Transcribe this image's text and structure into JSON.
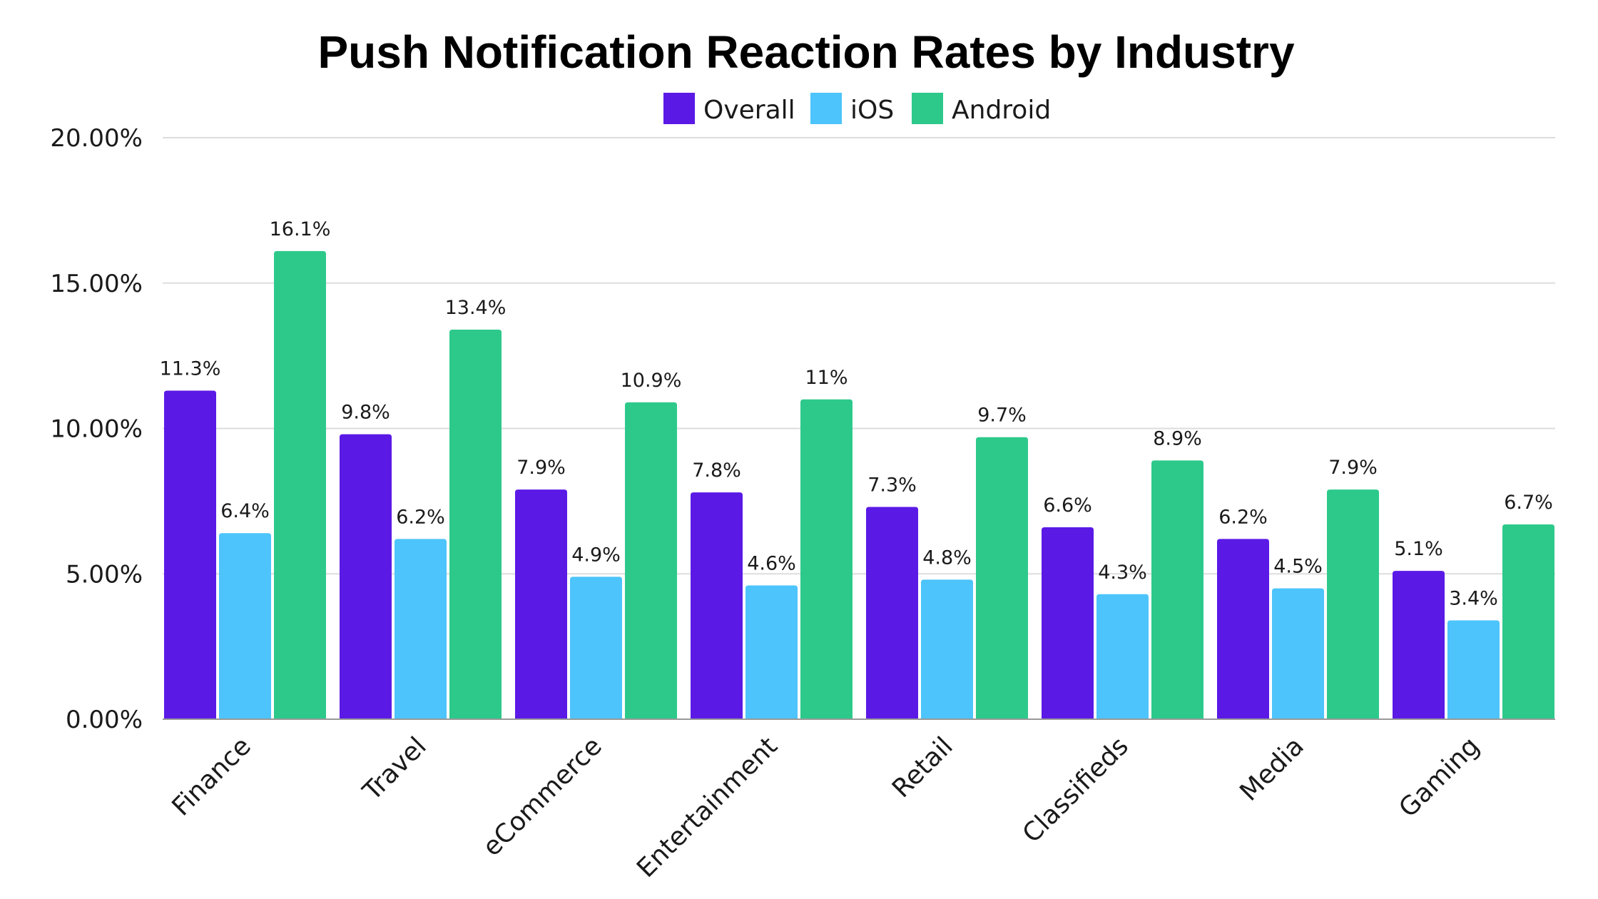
{
  "chart_data": {
    "type": "bar",
    "title": "Push Notification Reaction Rates by Industry",
    "xlabel": "",
    "ylabel": "",
    "ylim": [
      0,
      20
    ],
    "y_ticks": [
      0,
      5,
      10,
      15,
      20
    ],
    "y_tick_labels": [
      "0.00%",
      "5.00%",
      "10.00%",
      "15.00%",
      "20.00%"
    ],
    "grid": true,
    "legend_position": "top-center",
    "categories": [
      "Finance",
      "Travel",
      "eCommerce",
      "Entertainment",
      "Retail",
      "Classifieds",
      "Media",
      "Gaming"
    ],
    "series": [
      {
        "name": "Overall",
        "color": "#5b19e6",
        "values": [
          11.3,
          9.8,
          7.9,
          7.8,
          7.3,
          6.6,
          6.2,
          5.1
        ],
        "labels": [
          "11.3%",
          "9.8%",
          "7.9%",
          "7.8%",
          "7.3%",
          "6.6%",
          "6.2%",
          "5.1%"
        ]
      },
      {
        "name": "iOS",
        "color": "#4dc4fb",
        "values": [
          6.4,
          6.2,
          4.9,
          4.6,
          4.8,
          4.3,
          4.5,
          3.4
        ],
        "labels": [
          "6.4%",
          "6.2%",
          "4.9%",
          "4.6%",
          "4.8%",
          "4.3%",
          "4.5%",
          "3.4%"
        ]
      },
      {
        "name": "Android",
        "color": "#2dc98b",
        "values": [
          16.1,
          13.4,
          10.9,
          11,
          9.7,
          8.9,
          7.9,
          6.7
        ],
        "labels": [
          "16.1%",
          "13.4%",
          "10.9%",
          "11%",
          "9.7%",
          "8.9%",
          "7.9%",
          "6.7%"
        ]
      }
    ]
  }
}
